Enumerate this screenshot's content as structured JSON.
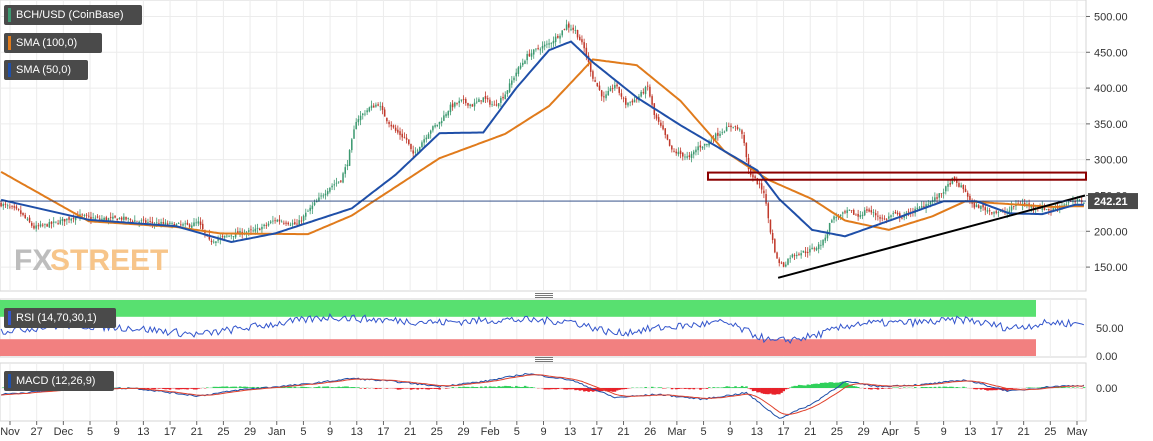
{
  "legends": {
    "price": "BCH/USD (CoinBase)",
    "sma100": "SMA (100,0)",
    "sma50": "SMA (50,0)",
    "rsi": "RSI (14,70,30,1)",
    "macd": "MACD (12,26,9)"
  },
  "watermark": {
    "fx": "FX",
    "street": "STREET"
  },
  "last_price_label": "242.21",
  "colors": {
    "price_up": "#3d9970",
    "price_down": "#c0392b",
    "sma100": "#e07b1c",
    "sma50": "#1f4fa8",
    "rsi_line": "#3355cc",
    "rsi_upper_band": "#58e070",
    "rsi_lower_band": "#f28080",
    "macd_line": "#1f4fa8",
    "signal_line": "#e0402b",
    "hist_pos": "#2fd05a",
    "hist_neg": "#e8222a",
    "resistance_zone": "#8b0000",
    "trendline": "#000000",
    "legend_bg": "#4a4a4a"
  },
  "chart_data": [
    {
      "type": "candlestick",
      "title": "BCH/USD (CoinBase)",
      "y_ticks": [
        "500.00",
        "450.00",
        "400.00",
        "350.00",
        "300.00",
        "250.00",
        "200.00",
        "150.00"
      ],
      "ylim": [
        118,
        523
      ],
      "x_ticks": [
        "Nov",
        "27",
        "Dec",
        "5",
        "9",
        "13",
        "17",
        "21",
        "25",
        "29",
        "Jan",
        "5",
        "9",
        "13",
        "17",
        "21",
        "25",
        "29",
        "Feb",
        "5",
        "9",
        "13",
        "17",
        "21",
        "26",
        "Mar",
        "5",
        "9",
        "13",
        "17",
        "21",
        "25",
        "29",
        "Apr",
        "5",
        "9",
        "13",
        "17",
        "21",
        "25",
        "May"
      ],
      "price_anchors": [
        [
          0,
          238
        ],
        [
          8,
          228
        ],
        [
          15,
          205
        ],
        [
          25,
          212
        ],
        [
          35,
          222
        ],
        [
          45,
          217
        ],
        [
          55,
          218
        ],
        [
          65,
          213
        ],
        [
          75,
          210
        ],
        [
          85,
          208
        ],
        [
          90,
          212
        ],
        [
          95,
          186
        ],
        [
          100,
          190
        ],
        [
          105,
          195
        ],
        [
          110,
          198
        ],
        [
          115,
          200
        ],
        [
          120,
          207
        ],
        [
          125,
          216
        ],
        [
          130,
          213
        ],
        [
          135,
          209
        ],
        [
          140,
          228
        ],
        [
          145,
          245
        ],
        [
          150,
          262
        ],
        [
          155,
          272
        ],
        [
          158,
          296
        ],
        [
          162,
          355
        ],
        [
          168,
          372
        ],
        [
          172,
          378
        ],
        [
          176,
          356
        ],
        [
          180,
          340
        ],
        [
          185,
          328
        ],
        [
          188,
          306
        ],
        [
          192,
          325
        ],
        [
          196,
          342
        ],
        [
          200,
          352
        ],
        [
          205,
          374
        ],
        [
          210,
          382
        ],
        [
          215,
          376
        ],
        [
          220,
          386
        ],
        [
          225,
          375
        ],
        [
          230,
          392
        ],
        [
          235,
          422
        ],
        [
          240,
          445
        ],
        [
          245,
          455
        ],
        [
          250,
          462
        ],
        [
          255,
          476
        ],
        [
          258,
          488
        ],
        [
          262,
          480
        ],
        [
          266,
          455
        ],
        [
          270,
          415
        ],
        [
          275,
          385
        ],
        [
          280,
          405
        ],
        [
          285,
          378
        ],
        [
          290,
          385
        ],
        [
          295,
          402
        ],
        [
          298,
          362
        ],
        [
          302,
          340
        ],
        [
          306,
          312
        ],
        [
          310,
          308
        ],
        [
          314,
          302
        ],
        [
          318,
          318
        ],
        [
          322,
          322
        ],
        [
          326,
          334
        ],
        [
          330,
          342
        ],
        [
          334,
          348
        ],
        [
          338,
          338
        ],
        [
          341,
          285
        ],
        [
          344,
          272
        ],
        [
          348,
          255
        ],
        [
          351,
          200
        ],
        [
          354,
          160
        ],
        [
          357,
          152
        ],
        [
          360,
          165
        ],
        [
          364,
          170
        ],
        [
          368,
          172
        ],
        [
          372,
          178
        ],
        [
          375,
          185
        ],
        [
          379,
          218
        ],
        [
          383,
          222
        ],
        [
          387,
          228
        ],
        [
          391,
          221
        ],
        [
          395,
          230
        ],
        [
          399,
          223
        ],
        [
          403,
          216
        ],
        [
          407,
          224
        ],
        [
          411,
          220
        ],
        [
          415,
          227
        ],
        [
          419,
          232
        ],
        [
          423,
          240
        ],
        [
          427,
          247
        ],
        [
          431,
          260
        ],
        [
          434,
          272
        ],
        [
          437,
          264
        ],
        [
          440,
          256
        ],
        [
          443,
          236
        ],
        [
          447,
          234
        ],
        [
          451,
          228
        ],
        [
          455,
          227
        ],
        [
          459,
          226
        ],
        [
          463,
          238
        ],
        [
          467,
          238
        ],
        [
          471,
          234
        ],
        [
          475,
          233
        ],
        [
          479,
          229
        ],
        [
          483,
          236
        ],
        [
          487,
          240
        ],
        [
          491,
          242
        ]
      ],
      "sma100_anchors": [
        [
          0,
          283
        ],
        [
          40,
          214
        ],
        [
          80,
          206
        ],
        [
          100,
          197
        ],
        [
          140,
          196
        ],
        [
          160,
          222
        ],
        [
          180,
          262
        ],
        [
          200,
          302
        ],
        [
          230,
          336
        ],
        [
          250,
          375
        ],
        [
          270,
          440
        ],
        [
          290,
          432
        ],
        [
          310,
          382
        ],
        [
          330,
          312
        ],
        [
          350,
          272
        ],
        [
          370,
          245
        ],
        [
          385,
          215
        ],
        [
          405,
          202
        ],
        [
          425,
          221
        ],
        [
          440,
          242
        ],
        [
          460,
          238
        ],
        [
          480,
          234
        ],
        [
          490,
          235
        ]
      ],
      "sma50_anchors": [
        [
          0,
          244
        ],
        [
          40,
          216
        ],
        [
          80,
          207
        ],
        [
          105,
          185
        ],
        [
          125,
          197
        ],
        [
          160,
          232
        ],
        [
          180,
          279
        ],
        [
          200,
          337
        ],
        [
          220,
          338
        ],
        [
          235,
          400
        ],
        [
          250,
          453
        ],
        [
          260,
          465
        ],
        [
          270,
          436
        ],
        [
          290,
          387
        ],
        [
          310,
          348
        ],
        [
          330,
          312
        ],
        [
          345,
          285
        ],
        [
          355,
          245
        ],
        [
          370,
          202
        ],
        [
          385,
          193
        ],
        [
          410,
          220
        ],
        [
          430,
          242
        ],
        [
          445,
          242
        ],
        [
          460,
          225
        ],
        [
          475,
          224
        ],
        [
          490,
          237
        ]
      ],
      "last_price": 242.21,
      "resistance_zone": [
        272,
        282
      ],
      "trendline": {
        "from": [
          355,
          135
        ],
        "to": [
          495,
          250
        ]
      }
    },
    {
      "type": "line",
      "title": "RSI (14,70,30,1)",
      "y_ticks": [
        "50.00",
        "0.00"
      ],
      "ylim": [
        0,
        100
      ],
      "overbought": 70,
      "oversold": 30,
      "rsi_anchors": [
        [
          0,
          45
        ],
        [
          30,
          55
        ],
        [
          60,
          50
        ],
        [
          90,
          38
        ],
        [
          120,
          55
        ],
        [
          150,
          70
        ],
        [
          170,
          65
        ],
        [
          200,
          60
        ],
        [
          230,
          65
        ],
        [
          260,
          62
        ],
        [
          280,
          40
        ],
        [
          300,
          50
        ],
        [
          330,
          60
        ],
        [
          352,
          25
        ],
        [
          370,
          35
        ],
        [
          390,
          58
        ],
        [
          420,
          60
        ],
        [
          440,
          65
        ],
        [
          460,
          50
        ],
        [
          480,
          60
        ],
        [
          490,
          58
        ]
      ]
    },
    {
      "type": "line",
      "title": "MACD (12,26,9)",
      "y_ticks": [
        "0.00"
      ],
      "ylim": [
        -40,
        30
      ],
      "macd_anchors": [
        [
          0,
          -8
        ],
        [
          30,
          -2
        ],
        [
          60,
          0
        ],
        [
          90,
          -10
        ],
        [
          110,
          -2
        ],
        [
          140,
          5
        ],
        [
          160,
          12
        ],
        [
          180,
          8
        ],
        [
          200,
          2
        ],
        [
          220,
          8
        ],
        [
          240,
          18
        ],
        [
          260,
          10
        ],
        [
          280,
          -12
        ],
        [
          300,
          -8
        ],
        [
          320,
          -14
        ],
        [
          340,
          -6
        ],
        [
          355,
          -38
        ],
        [
          370,
          -20
        ],
        [
          385,
          8
        ],
        [
          400,
          2
        ],
        [
          420,
          4
        ],
        [
          440,
          10
        ],
        [
          460,
          -4
        ],
        [
          480,
          2
        ],
        [
          490,
          3
        ]
      ]
    }
  ]
}
